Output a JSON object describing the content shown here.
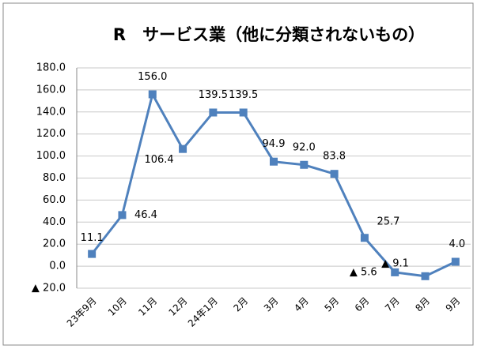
{
  "chart_data": {
    "type": "line",
    "title": "R　サービス業（他に分類されないもの）",
    "categories": [
      "23年9月",
      "10月",
      "11月",
      "12月",
      "24年1月",
      "2月",
      "3月",
      "4月",
      "5月",
      "6月",
      "7月",
      "8月",
      "9月"
    ],
    "series": [
      {
        "name": "R",
        "color": "#4f81bd",
        "values": [
          11.1,
          46.4,
          156.0,
          106.4,
          139.5,
          139.5,
          94.9,
          92.0,
          83.8,
          25.7,
          -5.6,
          -9.1,
          4.0
        ],
        "value_labels": [
          "11.1",
          "46.4",
          "156.0",
          "106.4",
          "139.5",
          "139.5",
          "94.9",
          "92.0",
          "83.8",
          "25.7",
          "▲ 5.6",
          "▲ 9.1",
          "4.0"
        ]
      }
    ],
    "ylim": [
      -20,
      180
    ],
    "yticks": [
      {
        "value": -20,
        "label": "▲ 20.0"
      },
      {
        "value": 0,
        "label": "0.0"
      },
      {
        "value": 20,
        "label": "20.0"
      },
      {
        "value": 40,
        "label": "40.0"
      },
      {
        "value": 60,
        "label": "60.0"
      },
      {
        "value": 80,
        "label": "80.0"
      },
      {
        "value": 100,
        "label": "100.0"
      },
      {
        "value": 120,
        "label": "120.0"
      },
      {
        "value": 140,
        "label": "140.0"
      },
      {
        "value": 160,
        "label": "160.0"
      },
      {
        "value": 180,
        "label": "180.0"
      }
    ],
    "grid": true
  }
}
